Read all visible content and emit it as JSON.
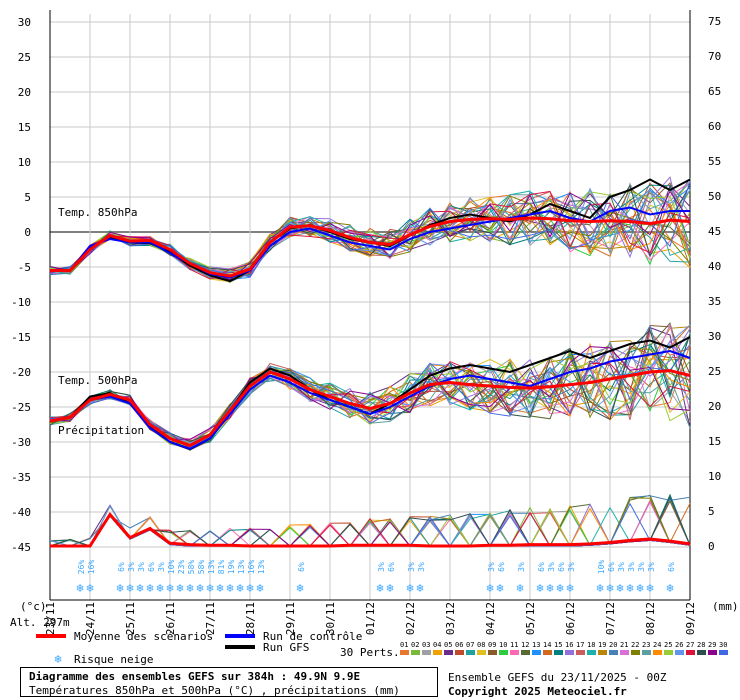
{
  "chart_data": {
    "type": "line",
    "left_axis": {
      "unit": "(°c)",
      "ticks": [
        30,
        25,
        20,
        15,
        10,
        5,
        0,
        -5,
        -10,
        -15,
        -20,
        -25,
        -30,
        -35,
        -40,
        -45
      ]
    },
    "right_axis": {
      "unit": "(mm)",
      "ticks": [
        75,
        70,
        65,
        60,
        55,
        50,
        45,
        40,
        35,
        30,
        25,
        20,
        15,
        10,
        5,
        0
      ]
    },
    "altitude_label": "Alt. 297m",
    "dates": [
      "23/11",
      "24/11",
      "25/11",
      "26/11",
      "27/11",
      "28/11",
      "29/11",
      "30/11",
      "01/12",
      "02/12",
      "03/12",
      "04/12",
      "05/12",
      "06/12",
      "07/12",
      "08/12",
      "09/12"
    ],
    "panel_labels": {
      "t850": "Temp. 850hPa",
      "t500": "Temp. 500hPa",
      "precip": "Précipitation"
    },
    "t850_mean": [
      -5.5,
      -5.5,
      -2.5,
      -0.5,
      -1.3,
      -1.2,
      -2.5,
      -4.5,
      -5.8,
      -6.3,
      -5.3,
      -1.5,
      0.7,
      0.9,
      0.2,
      -0.8,
      -1.5,
      -1.8,
      -0.4,
      0.8,
      1.5,
      1.8,
      1.9,
      1.8,
      2.0,
      1.9,
      1.6,
      1.5,
      1.6,
      1.5,
      1.2,
      1.7,
      1.5
    ],
    "t850_control": [
      -5.5,
      -5.5,
      -2,
      -1,
      -1.5,
      -1.5,
      -3,
      -4.5,
      -6,
      -6.5,
      -5.5,
      -2,
      0,
      0.5,
      -0.5,
      -1.5,
      -2,
      -2.5,
      -1,
      0,
      0.5,
      1,
      1.5,
      2,
      2.5,
      3,
      2,
      1.5,
      3,
      3.5,
      2.5,
      3,
      3
    ],
    "t850_gfs": [
      -5.5,
      -5.5,
      -2.2,
      -0.8,
      -1.5,
      -1.6,
      -2.8,
      -4.8,
      -6.2,
      -7,
      -5.5,
      -1.5,
      0.5,
      1,
      0,
      -1,
      -1.5,
      -2,
      -0.5,
      1,
      2,
      2.5,
      2,
      1.5,
      2.5,
      4,
      3,
      2,
      5,
      6,
      7.5,
      6,
      7.5
    ],
    "t500_mean": [
      -27,
      -26.5,
      -24,
      -23.2,
      -24,
      -27.5,
      -29.5,
      -30.5,
      -29,
      -25.5,
      -22,
      -20,
      -21,
      -22.5,
      -23.5,
      -24.5,
      -25.2,
      -24.5,
      -23,
      -21.8,
      -21.5,
      -21.8,
      -22,
      -22.2,
      -22.3,
      -22.1,
      -21.8,
      -21.5,
      -21,
      -20.5,
      -20,
      -19.8,
      -20.5
    ],
    "t500_control": [
      -27,
      -26.5,
      -24,
      -23.5,
      -24.5,
      -28,
      -30,
      -31,
      -29.5,
      -26,
      -22.5,
      -20.5,
      -21.5,
      -23,
      -24,
      -25,
      -26,
      -25,
      -23.5,
      -22,
      -21,
      -20.5,
      -21,
      -21.5,
      -22,
      -21,
      -20,
      -19.5,
      -18.5,
      -18,
      -17.5,
      -17,
      -18
    ],
    "t500_gfs": [
      -27,
      -26.5,
      -23.5,
      -23,
      -24.5,
      -27.8,
      -30,
      -31,
      -29.5,
      -25.5,
      -21.5,
      -19.5,
      -20.5,
      -22.5,
      -24,
      -25,
      -26,
      -24.5,
      -22.5,
      -20.5,
      -19.5,
      -19,
      -19.5,
      -20,
      -19,
      -18,
      -17,
      -18,
      -17,
      -16,
      -15.5,
      -16.5,
      -15
    ],
    "precip_mean_mm": [
      0,
      0,
      0,
      4.5,
      1.2,
      2.5,
      0.4,
      0.2,
      0.1,
      0.1,
      0,
      0,
      0,
      0,
      0,
      0.1,
      0.1,
      0.1,
      0.1,
      0,
      0,
      0,
      0.1,
      0.1,
      0.2,
      0.2,
      0.2,
      0.3,
      0.5,
      0.8,
      1.0,
      0.7,
      0.3
    ],
    "snow_risk": [
      {
        "h": 18,
        "pct": "26%"
      },
      {
        "h": 24,
        "pct": "16%"
      },
      {
        "h": 42,
        "pct": "6%"
      },
      {
        "h": 48,
        "pct": "3%"
      },
      {
        "h": 54,
        "pct": "3%"
      },
      {
        "h": 60,
        "pct": "6%"
      },
      {
        "h": 66,
        "pct": "3%"
      },
      {
        "h": 72,
        "pct": "10%"
      },
      {
        "h": 78,
        "pct": "23%"
      },
      {
        "h": 84,
        "pct": "58%"
      },
      {
        "h": 90,
        "pct": "58%"
      },
      {
        "h": 96,
        "pct": "13%"
      },
      {
        "h": 102,
        "pct": "81%"
      },
      {
        "h": 108,
        "pct": "19%"
      },
      {
        "h": 114,
        "pct": "13%"
      },
      {
        "h": 120,
        "pct": "16%"
      },
      {
        "h": 126,
        "pct": "13%"
      },
      {
        "h": 150,
        "pct": "6%"
      },
      {
        "h": 198,
        "pct": "3%"
      },
      {
        "h": 204,
        "pct": "6%"
      },
      {
        "h": 216,
        "pct": "3%"
      },
      {
        "h": 222,
        "pct": "3%"
      },
      {
        "h": 264,
        "pct": "3%"
      },
      {
        "h": 270,
        "pct": "6%"
      },
      {
        "h": 282,
        "pct": "3%"
      },
      {
        "h": 294,
        "pct": "6%"
      },
      {
        "h": 300,
        "pct": "3%"
      },
      {
        "h": 306,
        "pct": "6%"
      },
      {
        "h": 312,
        "pct": "3%"
      },
      {
        "h": 330,
        "pct": "10%"
      },
      {
        "h": 336,
        "pct": "6%"
      },
      {
        "h": 342,
        "pct": "3%"
      },
      {
        "h": 348,
        "pct": "3%"
      },
      {
        "h": 354,
        "pct": "3%"
      },
      {
        "h": 360,
        "pct": "3%"
      },
      {
        "h": 372,
        "pct": "6%"
      }
    ],
    "legend": {
      "mean": "Moyenne des scénarios",
      "control": "Run de contrôle",
      "gfs": "Run GFS",
      "snow": "Risque neige",
      "perts": "30 Perts.",
      "pert_ids": [
        "01",
        "02",
        "03",
        "04",
        "05",
        "06",
        "07",
        "08",
        "09",
        "10",
        "11",
        "12",
        "13",
        "14",
        "15",
        "16",
        "17",
        "18",
        "19",
        "20",
        "21",
        "22",
        "23",
        "24",
        "25",
        "26",
        "27",
        "28",
        "29",
        "30"
      ]
    },
    "colors": {
      "mean": "#ff0000",
      "control": "#0000ff",
      "gfs": "#000000",
      "snow": "#3ba6ff",
      "perts": [
        "#e8772e",
        "#7cb93b",
        "#a0a0a0",
        "#f0a000",
        "#6a2d8a",
        "#c04a2c",
        "#22a1a1",
        "#e0c020",
        "#8b5a2b",
        "#2ecc40",
        "#ff69b4",
        "#556b2f",
        "#1e90ff",
        "#d2691e",
        "#008080",
        "#9370db",
        "#cd5c5c",
        "#20b2aa",
        "#b8860b",
        "#4682b4",
        "#da70d6",
        "#808000",
        "#5f9ea0",
        "#ff8c00",
        "#9acd32",
        "#6495ed",
        "#dc143c",
        "#2f4f4f",
        "#8b008b",
        "#4169e1"
      ]
    }
  },
  "footer": {
    "title": "Diagramme des ensembles GEFS sur 384h : 49.9N 9.9E",
    "subtitle": "Températures 850hPa et 500hPa (°C) , précipitations (mm)",
    "ens_info": "Ensemble GEFS du 23/11/2025 - 00Z",
    "copyright": "Copyright 2025 Meteociel.fr"
  }
}
